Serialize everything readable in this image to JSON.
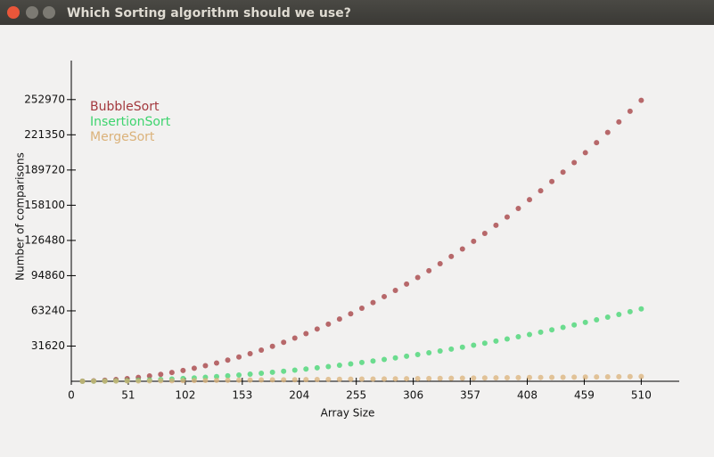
{
  "window": {
    "title": "Which Sorting algorithm should we use?"
  },
  "chart_data": {
    "type": "scatter",
    "x_label": "Array Size",
    "y_label": "Number of comparisons",
    "xlim": [
      0,
      544
    ],
    "ylim": [
      0,
      288000
    ],
    "xticks": [
      0,
      51,
      102,
      153,
      204,
      255,
      306,
      357,
      408,
      459,
      510
    ],
    "yticks": [
      31620,
      63240,
      94860,
      126480,
      158100,
      189720,
      221350,
      252970
    ],
    "legend": "top-left",
    "x": [
      10,
      20,
      30,
      40,
      50,
      60,
      70,
      80,
      90,
      100,
      110,
      120,
      130,
      140,
      150,
      160,
      170,
      180,
      190,
      200,
      210,
      220,
      230,
      240,
      250,
      260,
      270,
      280,
      290,
      300,
      310,
      320,
      330,
      340,
      350,
      360,
      370,
      380,
      390,
      400,
      410,
      420,
      430,
      440,
      450,
      460,
      470,
      480,
      490,
      500,
      510
    ],
    "series": [
      {
        "name": "BubbleSort",
        "color": "#a3393e",
        "values": [
          97,
          388,
          873,
          1552,
          2425,
          3492,
          4753,
          6208,
          7857,
          9700,
          11737,
          13968,
          16393,
          19012,
          21825,
          24832,
          28033,
          31428,
          35017,
          38800,
          42777,
          46948,
          51313,
          55872,
          60625,
          65572,
          70713,
          76048,
          81577,
          87300,
          93217,
          99328,
          105633,
          112132,
          118825,
          125712,
          132793,
          140068,
          147537,
          155200,
          163057,
          171108,
          179353,
          187792,
          196425,
          205252,
          214273,
          223488,
          232897,
          242500,
          252297
        ]
      },
      {
        "name": "InsertionSort",
        "color": "#3ed46e",
        "values": [
          25,
          100,
          225,
          400,
          625,
          900,
          1225,
          1600,
          2025,
          2500,
          3025,
          3600,
          4225,
          4900,
          5625,
          6400,
          7225,
          8100,
          9025,
          10000,
          11025,
          12100,
          13225,
          14400,
          15625,
          16900,
          18225,
          19600,
          21025,
          22500,
          24025,
          25600,
          27225,
          28900,
          30625,
          32400,
          34225,
          36100,
          38025,
          40000,
          42025,
          44100,
          46225,
          48400,
          50625,
          52900,
          55225,
          57600,
          60025,
          62500,
          65025
        ]
      },
      {
        "name": "MergeSort",
        "color": "#dbb27a",
        "values": [
          28,
          76,
          132,
          193,
          257,
          325,
          394,
          466,
          539,
          614,
          691,
          769,
          848,
          928,
          1010,
          1091,
          1175,
          1260,
          1344,
          1429,
          1515,
          1602,
          1690,
          1778,
          1867,
          1956,
          2046,
          2137,
          2228,
          2319,
          2411,
          2503,
          2596,
          2689,
          2783,
          2877,
          2972,
          3067,
          3162,
          3257,
          3353,
          3450,
          3547,
          3644,
          3741,
          3839,
          3937,
          4035,
          4134,
          4233,
          4332
        ]
      }
    ]
  }
}
